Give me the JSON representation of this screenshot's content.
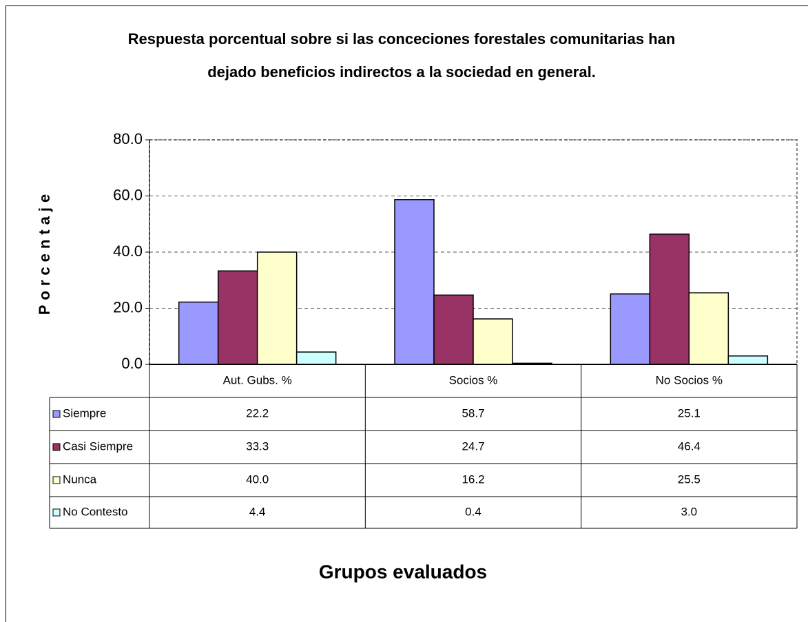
{
  "chart_data": {
    "type": "bar",
    "title": [
      "Respuesta porcentual sobre si las conceciones forestales comunitarias han",
      "dejado beneficios indirectos a la sociedad en general."
    ],
    "y_label": "Porcentaje",
    "x_label": "Grupos evaluados",
    "categories": [
      "Aut. Gubs. %",
      "Socios %",
      "No Socios %"
    ],
    "series": [
      {
        "name": "Siempre",
        "color": "#9999ff",
        "values": [
          22.2,
          58.7,
          25.1
        ],
        "value_labels": [
          "22.2",
          "58.7",
          "25.1"
        ]
      },
      {
        "name": "Casi Siempre",
        "color": "#993366",
        "values": [
          33.3,
          24.7,
          46.4
        ],
        "value_labels": [
          "33.3",
          "24.7",
          "46.4"
        ]
      },
      {
        "name": "Nunca",
        "color": "#ffffcc",
        "values": [
          40.0,
          16.2,
          25.5
        ],
        "value_labels": [
          "40.0",
          "16.2",
          "25.5"
        ]
      },
      {
        "name": "No Contesto",
        "color": "#ccffff",
        "values": [
          4.4,
          0.4,
          3.0
        ],
        "value_labels": [
          "4.4",
          "0.4",
          "3.0"
        ]
      }
    ],
    "ylim": [
      0,
      80
    ],
    "yticks": [
      {
        "value": 0,
        "label": "0.0"
      },
      {
        "value": 20,
        "label": "20.0"
      },
      {
        "value": 40,
        "label": "40.0"
      },
      {
        "value": 60,
        "label": "60.0"
      },
      {
        "value": 80,
        "label": "80.0"
      }
    ],
    "grid": true
  }
}
